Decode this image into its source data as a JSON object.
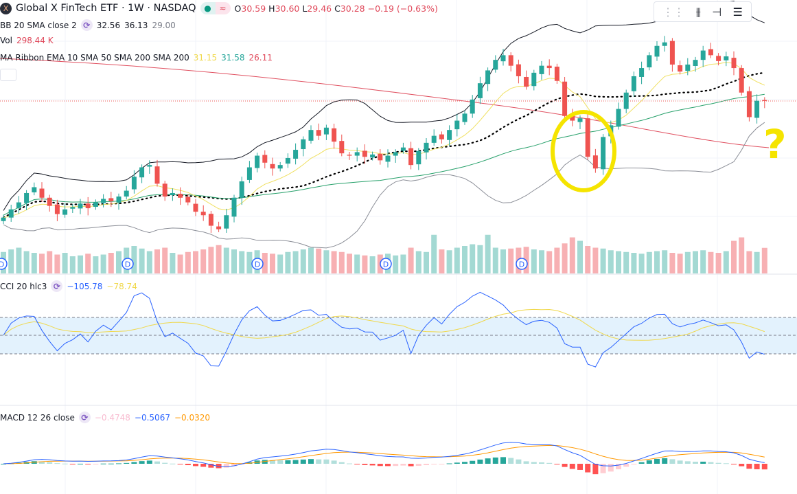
{
  "header": {
    "symbol_logo": "X",
    "title": "Global X FinTech ETF · 1W · NASDAQ",
    "market_status_icon": "dot",
    "delay_icon": "≈",
    "open_label": "O",
    "open": "30.59",
    "high_label": "H",
    "high": "30.60",
    "low_label": "L",
    "low": "29.46",
    "close_label": "C",
    "close": "30.28",
    "change": "−0.19 (−0.63%)"
  },
  "indicators": {
    "bb": {
      "label": "BB 20 SMA close 2",
      "basis": "32.56",
      "upper": "36.13",
      "lower": "29.00"
    },
    "vol": {
      "label": "Vol",
      "value": "298.44 K"
    },
    "ma_ribbon": {
      "label": "MA Ribbon EMA 10 SMA 50 SMA 200 SMA 200",
      "v1": "31.15",
      "v2": "31.58",
      "v3": "26.11"
    },
    "cci": {
      "label": "CCI 20 hlc3",
      "value": "−105.78",
      "ma": "−78.74"
    },
    "macd": {
      "label": "MACD 12 26 close",
      "hist": "−0.4748",
      "macd": "−0.5067",
      "signal": "−0.0320"
    }
  },
  "toolbar": {
    "icons": [
      "drag-handle-icon",
      "candles-icon",
      "depth-icon",
      "menu-lines-icon"
    ]
  },
  "dividend_label": "D",
  "annotation": {
    "mark": "?",
    "color": "#f5e400"
  },
  "colors": {
    "up": "#26a69a",
    "down": "#ef5350",
    "bb_upper": "#131722",
    "bb_lower": "#8a8d96",
    "ema10": "#f0e060",
    "sma50": "#26a06a",
    "sma200": "#e05060",
    "cci": "#2962ff",
    "cci_ma": "#f0d84a",
    "macd": "#2962ff",
    "signal": "#ff9800",
    "cci_band": "#e3f2fd"
  },
  "chart_data": {
    "type": "candlestick",
    "closes": [
      20.3,
      21.0,
      21.6,
      22.4,
      22.9,
      22.0,
      21.3,
      20.6,
      21.0,
      21.2,
      21.5,
      21.1,
      21.6,
      21.9,
      21.7,
      22.1,
      22.6,
      23.8,
      24.6,
      24.8,
      23.2,
      22.1,
      22.4,
      22.0,
      21.6,
      20.8,
      20.5,
      19.6,
      19.3,
      20.5,
      22.0,
      23.4,
      24.6,
      25.6,
      25.0,
      24.5,
      24.8,
      25.4,
      26.1,
      27.0,
      27.8,
      27.3,
      28.0,
      26.8,
      25.8,
      25.6,
      25.9,
      25.5,
      25.7,
      25.2,
      25.6,
      25.9,
      26.3,
      24.8,
      26.0,
      26.7,
      27.3,
      27.0,
      27.8,
      28.6,
      29.2,
      30.4,
      31.8,
      32.9,
      33.8,
      34.2,
      33.3,
      32.4,
      31.5,
      32.7,
      33.3,
      33.1,
      32.0,
      29.0,
      28.6,
      28.8,
      25.5,
      24.5,
      27.2,
      28.2,
      29.6,
      31.0,
      32.4,
      33.1,
      34.2,
      35.0,
      35.3,
      33.4,
      32.8,
      33.4,
      33.8,
      34.6,
      34.2,
      33.7,
      34.1,
      33.1,
      31.0,
      28.9,
      30.3,
      30.28
    ],
    "volumes_k": [
      250,
      280,
      300,
      260,
      240,
      230,
      260,
      220,
      240,
      200,
      210,
      230,
      200,
      220,
      240,
      260,
      300,
      320,
      290,
      260,
      280,
      300,
      240,
      220,
      250,
      260,
      280,
      310,
      330,
      300,
      280,
      260,
      250,
      270,
      240,
      230,
      220,
      250,
      260,
      280,
      300,
      290,
      270,
      260,
      250,
      230,
      220,
      210,
      200,
      220,
      230,
      210,
      220,
      300,
      260,
      250,
      450,
      280,
      270,
      300,
      320,
      340,
      330,
      450,
      300,
      280,
      290,
      300,
      310,
      280,
      270,
      260,
      300,
      350,
      420,
      380,
      320,
      300,
      290,
      270,
      260,
      250,
      240,
      230,
      250,
      260,
      270,
      240,
      230,
      250,
      260,
      270,
      250,
      240,
      260,
      380,
      420,
      260,
      250,
      298
    ]
  }
}
